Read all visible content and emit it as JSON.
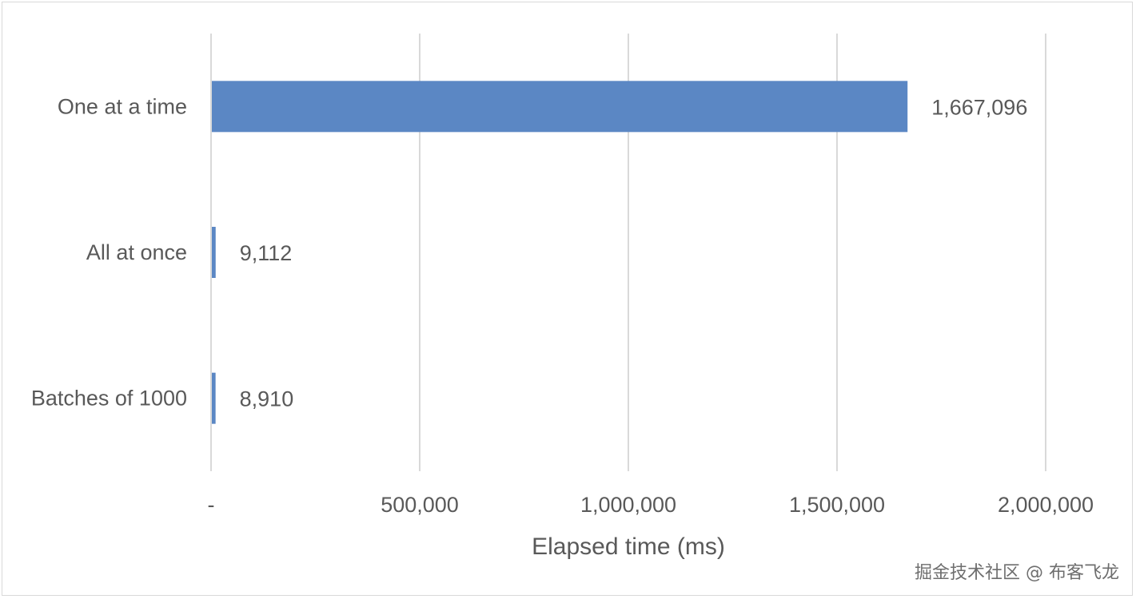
{
  "chart_data": {
    "type": "bar",
    "orientation": "horizontal",
    "categories": [
      "One at a time",
      "All at once",
      "Batches of 1000"
    ],
    "values": [
      1667096,
      9112,
      8910
    ],
    "data_labels": [
      "1,667,096",
      "9,112",
      "8,910"
    ],
    "xlabel": "Elapsed time (ms)",
    "xlim": [
      0,
      2000000
    ],
    "x_ticks": [
      0,
      500000,
      1000000,
      1500000,
      2000000
    ],
    "x_tick_labels": [
      "-",
      "500,000",
      "1,000,000",
      "1,500,000",
      "2,000,000"
    ],
    "grid": "vertical",
    "legend": "none",
    "bar_color": "#5b87c4",
    "grid_color": "#d9d9d9",
    "text_color": "#595959"
  },
  "watermark": "掘金技术社区 @ 布客飞龙"
}
